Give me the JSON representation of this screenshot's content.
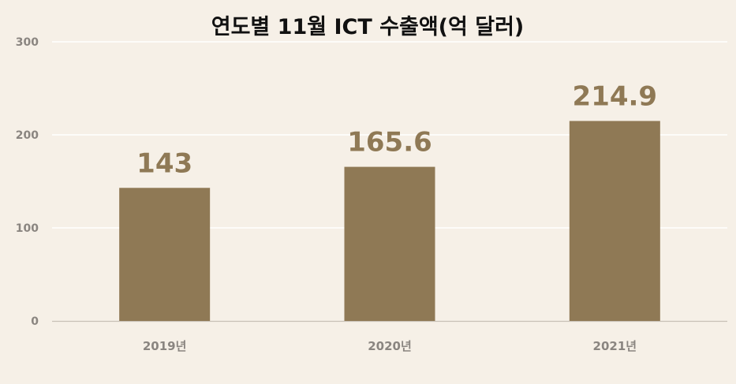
{
  "chart_data": {
    "type": "bar",
    "title": "연도별 11월 ICT 수출액(억 달러)",
    "categories": [
      "2019년",
      "2020년",
      "2021년"
    ],
    "values": [
      143,
      165.6,
      214.9
    ],
    "value_labels": [
      "143",
      "165.6",
      "214.9"
    ],
    "yticks": [
      "0",
      "100",
      "200",
      "300"
    ],
    "ytick_values": [
      0,
      100,
      200,
      300
    ],
    "ylim": [
      0,
      300
    ],
    "xlabel": "",
    "ylabel": "",
    "grid": true,
    "legend": "none",
    "colors": {
      "background": "#f6f0e7",
      "bar": "#8f7955",
      "label": "#8f7955",
      "grid": "#ffffff",
      "axis": "#c8c0b6",
      "tick_text": "#8a8580",
      "title": "#111111"
    }
  }
}
